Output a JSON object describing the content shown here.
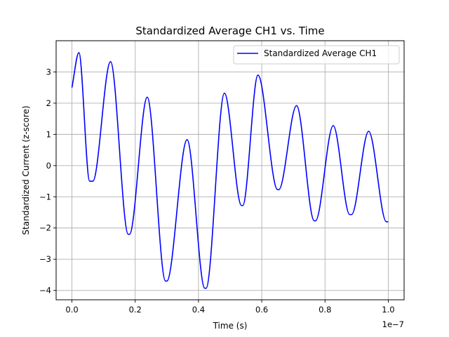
{
  "chart_data": {
    "type": "line",
    "title": "Standardized Average CH1 vs. Time",
    "xlabel": "Time (s)",
    "ylabel": "Standardized Current (z-score)",
    "x_offset_label": "1e−7",
    "xlim": [
      -0.05,
      1.05
    ],
    "ylim": [
      -4.3,
      4.0
    ],
    "x_ticks": [
      0.0,
      0.2,
      0.4,
      0.6,
      0.8,
      1.0
    ],
    "x_tick_labels": [
      "0.0",
      "0.2",
      "0.4",
      "0.6",
      "0.8",
      "1.0"
    ],
    "y_ticks": [
      -4,
      -3,
      -2,
      -1,
      0,
      1,
      2,
      3
    ],
    "y_tick_labels": [
      "−4",
      "−3",
      "−2",
      "−1",
      "0",
      "1",
      "2",
      "3"
    ],
    "grid": true,
    "legend_position": "top-right",
    "series": [
      {
        "name": "Standardized Average CH1",
        "color": "#0000ff",
        "x": [
          0.0,
          0.022,
          0.056,
          0.066,
          0.122,
          0.178,
          0.182,
          0.238,
          0.296,
          0.3,
          0.364,
          0.42,
          0.424,
          0.482,
          0.536,
          0.54,
          0.588,
          0.65,
          0.654,
          0.71,
          0.766,
          0.77,
          0.826,
          0.878,
          0.884,
          0.938,
          0.994,
          1.0
        ],
        "y": [
          2.5,
          3.62,
          -0.5,
          -0.5,
          3.33,
          -2.2,
          -2.2,
          2.19,
          -3.7,
          -3.7,
          0.83,
          -3.93,
          -3.93,
          2.32,
          -1.28,
          -1.28,
          2.9,
          -0.77,
          -0.77,
          1.92,
          -1.77,
          -1.77,
          1.28,
          -1.57,
          -1.57,
          1.1,
          -1.8,
          -1.8
        ]
      }
    ]
  }
}
